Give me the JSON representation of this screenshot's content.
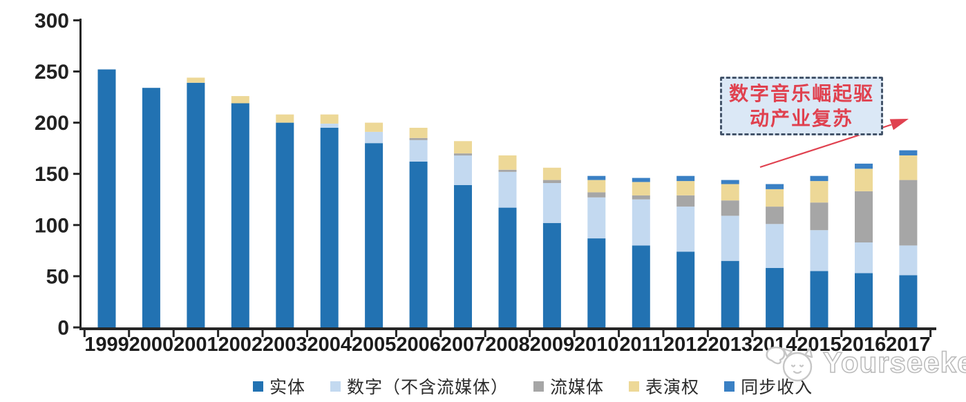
{
  "chart_data": {
    "type": "bar",
    "stacked": true,
    "title": "",
    "categories": [
      "1999",
      "2000",
      "2001",
      "2002",
      "2003",
      "2004",
      "2005",
      "2006",
      "2007",
      "2008",
      "2009",
      "2010",
      "2011",
      "2012",
      "2013",
      "2014",
      "2015",
      "2016",
      "2017"
    ],
    "series": [
      {
        "name": "实体",
        "color": "#2272B2",
        "values": [
          252,
          234,
          239,
          219,
          200,
          195,
          180,
          162,
          139,
          117,
          102,
          87,
          80,
          74,
          65,
          58,
          55,
          53,
          51
        ]
      },
      {
        "name": "数字（不含流媒体）",
        "color": "#C3D9F0",
        "values": [
          0,
          0,
          0,
          0,
          0,
          4,
          11,
          21,
          29,
          35,
          39,
          40,
          45,
          44,
          44,
          43,
          40,
          30,
          29
        ]
      },
      {
        "name": "流媒体",
        "color": "#A6A6A6",
        "values": [
          0,
          0,
          0,
          0,
          0,
          0,
          0,
          2,
          2,
          2,
          3,
          5,
          4,
          11,
          15,
          17,
          27,
          50,
          64
        ]
      },
      {
        "name": "表演权",
        "color": "#EDD897",
        "values": [
          0,
          0,
          5,
          7,
          8,
          9,
          9,
          10,
          12,
          14,
          12,
          12,
          13,
          14,
          16,
          17,
          21,
          22,
          24
        ]
      },
      {
        "name": "同步收入",
        "color": "#3A80C4",
        "values": [
          0,
          0,
          0,
          0,
          0,
          0,
          0,
          0,
          0,
          0,
          0,
          4,
          4,
          5,
          4,
          5,
          5,
          5,
          5
        ]
      }
    ],
    "ylim": [
      0,
      300
    ],
    "yticks": [
      0,
      50,
      100,
      150,
      200,
      250,
      300
    ],
    "grid": false,
    "legend_position": "bottom",
    "annotation": {
      "line1": "数字音乐崛起驱",
      "line2": "动产业复苏",
      "full_text": "数字音乐崛起驱动产业复苏",
      "text_color": "#E0414F",
      "border_color": "#44546A",
      "fill_color": "#DBE8F6",
      "arrow_color": "#E0414F",
      "arrow_points_to": "2017"
    }
  },
  "watermark": {
    "text": "Yourseeker",
    "icon": "cat-logo"
  }
}
